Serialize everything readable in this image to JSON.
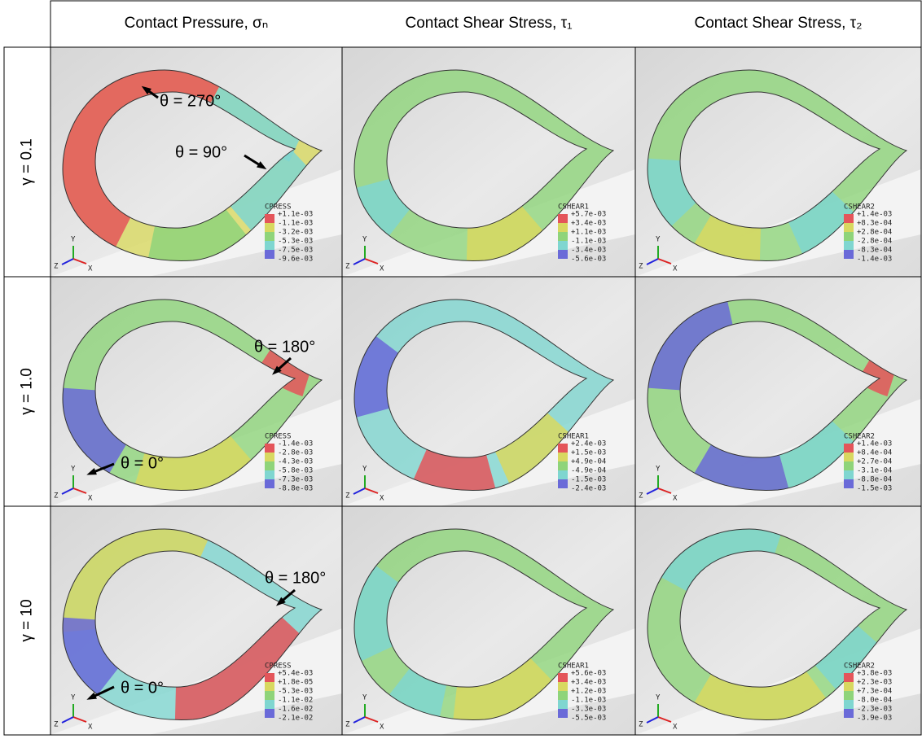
{
  "table": {
    "header": [
      "Contact Pressure, σₙ",
      "Contact Shear Stress, τ₁",
      "Contact Shear Stress, τ₂"
    ],
    "triad": {
      "y": "Y",
      "z": "Z",
      "x": "X"
    },
    "rows": [
      {
        "label": "γ = 0.1",
        "cells": [
          {
            "legend_title": "CPRESS",
            "legend_labels": [
              "+1.1e-03",
              "-1.1e-03",
              "-3.2e-03",
              "-5.3e-03",
              "-7.5e-03",
              "-9.6e-03"
            ],
            "annotations": [
              "θ = 270°",
              "θ = 90°"
            ]
          },
          {
            "legend_title": "CSHEAR1",
            "legend_labels": [
              "+5.7e-03",
              "+3.4e-03",
              "+1.1e-03",
              "-1.1e-03",
              "-3.4e-03",
              "-5.6e-03"
            ]
          },
          {
            "legend_title": "CSHEAR2",
            "legend_labels": [
              "+1.4e-03",
              "+8.3e-04",
              "+2.8e-04",
              "-2.8e-04",
              "-8.3e-04",
              "-1.4e-03"
            ]
          }
        ]
      },
      {
        "label": "γ = 1.0",
        "cells": [
          {
            "legend_title": "CPRESS",
            "legend_labels": [
              "-1.4e-03",
              "-2.8e-03",
              "-4.3e-03",
              "-5.8e-03",
              "-7.3e-03",
              "-8.8e-03"
            ],
            "annotations": [
              "θ = 180°",
              "θ = 0°"
            ]
          },
          {
            "legend_title": "CSHEAR1",
            "legend_labels": [
              "+2.4e-03",
              "+1.5e-03",
              "+4.9e-04",
              "-4.9e-04",
              "-1.5e-03",
              "-2.4e-03"
            ]
          },
          {
            "legend_title": "CSHEAR2",
            "legend_labels": [
              "+1.4e-03",
              "+8.4e-04",
              "+2.7e-04",
              "-3.1e-04",
              "-8.8e-04",
              "-1.5e-03"
            ]
          }
        ]
      },
      {
        "label": "γ = 10",
        "cells": [
          {
            "legend_title": "CPRESS",
            "legend_labels": [
              "+5.4e-03",
              "+1.8e-05",
              "-5.3e-03",
              "-1.1e-02",
              "-1.6e-02",
              "-2.1e-02"
            ],
            "annotations": [
              "θ = 180°",
              "θ = 0°"
            ]
          },
          {
            "legend_title": "CSHEAR1",
            "legend_labels": [
              "+5.6e-03",
              "+3.4e-03",
              "+1.2e-03",
              "-1.1e-03",
              "-3.3e-03",
              "-5.5e-03"
            ]
          },
          {
            "legend_title": "CSHEAR2",
            "legend_labels": [
              "+3.8e-03",
              "+2.3e-03",
              "+7.3e-04",
              "-8.0e-04",
              "-2.3e-03",
              "-3.9e-03"
            ]
          }
        ]
      }
    ]
  }
}
